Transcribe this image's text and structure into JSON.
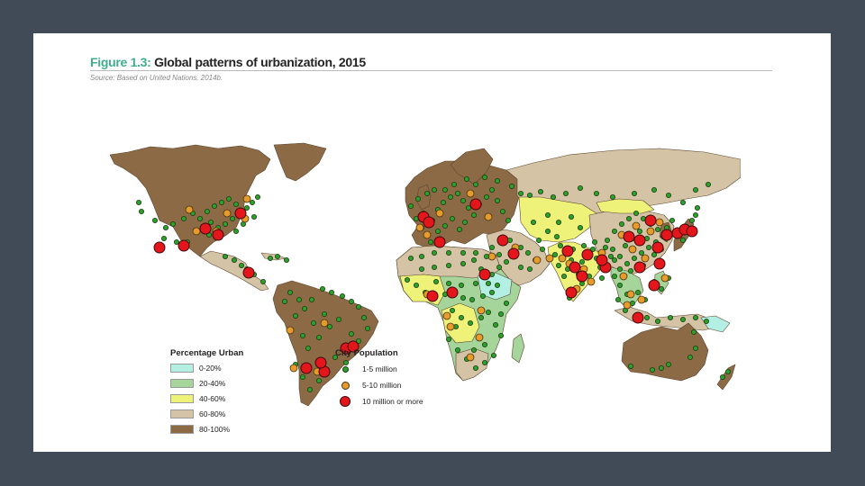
{
  "figure": {
    "label": "Figure 1.3:",
    "title": "Global patterns of urbanization, 2015",
    "source": "Source: Based on United Nations, 2014b."
  },
  "legend_urban": {
    "title": "Percentage Urban",
    "items": [
      {
        "label": "0-20%",
        "color": "#b3efe2"
      },
      {
        "label": "20-40%",
        "color": "#a5d59b"
      },
      {
        "label": "40-60%",
        "color": "#eef279"
      },
      {
        "label": "60-80%",
        "color": "#d4c4a5"
      },
      {
        "label": "80-100%",
        "color": "#8b6a45"
      }
    ]
  },
  "legend_city": {
    "title": "City Population",
    "items": [
      {
        "label": "1-5 million",
        "color": "#2ca02c"
      },
      {
        "label": "5-10 million",
        "color": "#e69b2a"
      },
      {
        "label": "10 million or more",
        "color": "#e4161b"
      }
    ]
  },
  "colors": {
    "background": "#414b57",
    "ocean": "#ffffff",
    "figure_label": "#3fae8c",
    "border": "#5a4630"
  }
}
